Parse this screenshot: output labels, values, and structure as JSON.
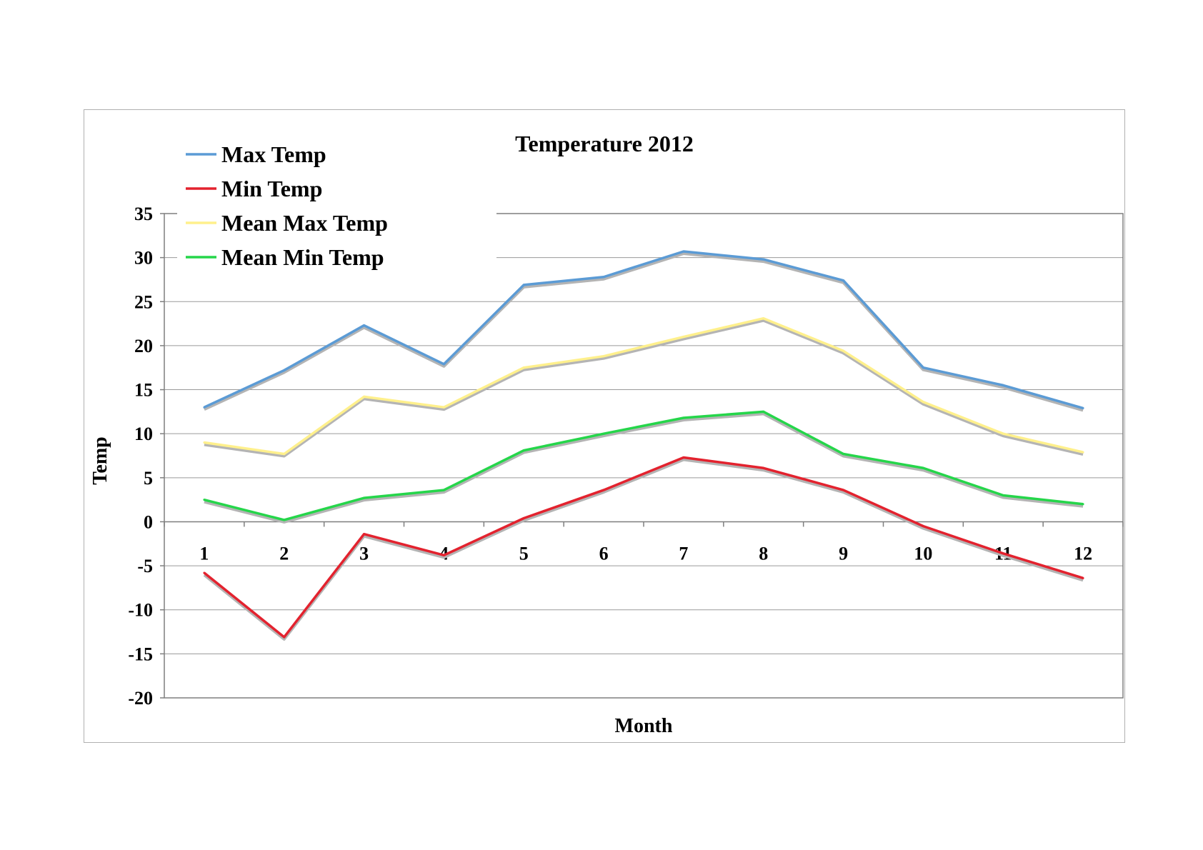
{
  "chart_data": {
    "type": "line",
    "title": "Temperature 2012",
    "xlabel": "Month",
    "ylabel": "Temp",
    "ylim": [
      -20,
      35
    ],
    "ytick_step": 5,
    "y_ticks": [
      "35",
      "30",
      "25",
      "20",
      "15",
      "10",
      "5",
      "0",
      "-5",
      "-10",
      "-15",
      "-20"
    ],
    "categories": [
      "1",
      "2",
      "3",
      "4",
      "5",
      "6",
      "7",
      "8",
      "9",
      "10",
      "11",
      "12"
    ],
    "grid": true,
    "legend": "top-left",
    "series": [
      {
        "name": "Max Temp",
        "color": "#5b9bd5",
        "values": [
          13,
          17.2,
          22.3,
          17.9,
          26.9,
          27.8,
          30.7,
          29.8,
          27.4,
          17.5,
          15.5,
          12.9
        ]
      },
      {
        "name": "Min Temp",
        "color": "#e3222e",
        "values": [
          -5.8,
          -13.1,
          -1.4,
          -3.8,
          0.4,
          3.6,
          7.3,
          6.1,
          3.6,
          -0.5,
          -3.6,
          -6.4
        ]
      },
      {
        "name": "Mean Max Temp",
        "color": "#fff08c",
        "values": [
          9,
          7.7,
          14.2,
          13,
          17.5,
          18.8,
          21,
          23.1,
          19.4,
          13.6,
          10,
          7.9
        ]
      },
      {
        "name": "Mean Min Temp",
        "color": "#25d64a",
        "values": [
          2.5,
          0.2,
          2.7,
          3.6,
          8.1,
          10,
          11.8,
          12.5,
          7.7,
          6.1,
          3,
          2
        ]
      }
    ],
    "shadow_color": "#b4b4b4"
  }
}
